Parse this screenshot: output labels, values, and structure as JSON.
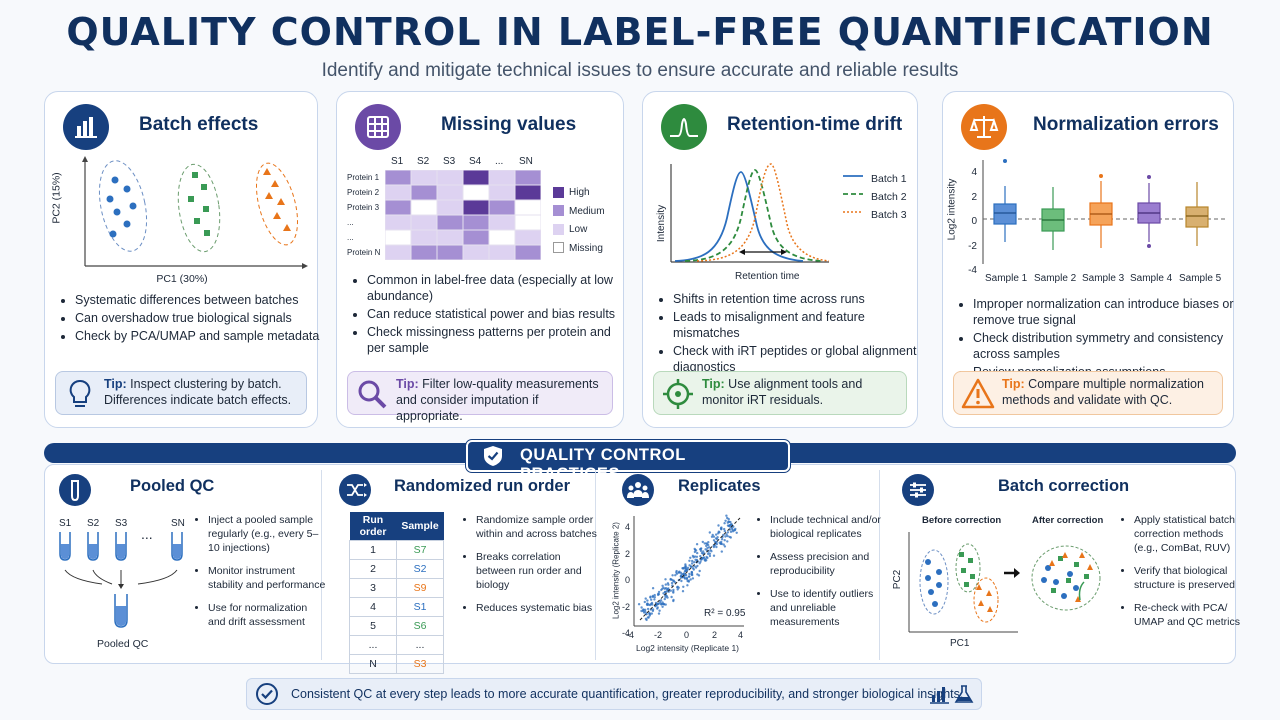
{
  "header": {
    "title": "QUALITY CONTROL IN LABEL-FREE QUANTIFICATION",
    "subtitle": "Identify and mitigate technical issues to ensure accurate and reliable results"
  },
  "cards": {
    "batch": {
      "title": "Batch effects",
      "icon": "bar-chart-icon",
      "color": "#17407f",
      "plot": {
        "xlabel": "PC1 (30%)",
        "ylabel": "PC2 (15%)"
      },
      "bullets": [
        "Systematic differences between batches",
        "Can overshadow true biological signals",
        "Check by PCA/UMAP and sample metadata"
      ],
      "tip_label": "Tip:",
      "tip_text": "Inspect clustering by batch. Differences indicate batch effects."
    },
    "missing": {
      "title": "Missing values",
      "icon": "grid-icon",
      "color": "#6b4aa6",
      "columns": [
        "S1",
        "S2",
        "S3",
        "S4",
        "...",
        "SN"
      ],
      "rows": [
        "Protein 1",
        "Protein 2",
        "Protein 3",
        "...",
        "...",
        "Protein N"
      ],
      "legend": [
        "High",
        "Medium",
        "Low",
        "Missing"
      ],
      "bullets": [
        "Common in label-free data (especially at low abundance)",
        "Can reduce statistical power and bias results",
        "Check missingness patterns per protein and per sample"
      ],
      "tip_label": "Tip:",
      "tip_text": "Filter low-quality measurements and consider imputation if appropriate."
    },
    "rt": {
      "title": "Retention-time drift",
      "icon": "chromatogram-icon",
      "color": "#2e8b3e",
      "plot": {
        "xlabel": "Retention time",
        "ylabel": "Intensity"
      },
      "legend": [
        "Batch 1",
        "Batch 2",
        "Batch 3"
      ],
      "bullets": [
        "Shifts in retention time across runs",
        "Leads to misalignment and feature mismatches",
        "Check with iRT peptides or global alignment diagnostics"
      ],
      "tip_label": "Tip:",
      "tip_text": "Use alignment tools and monitor iRT residuals."
    },
    "norm": {
      "title": "Normalization errors",
      "icon": "balance-scale-icon",
      "color": "#e8751a",
      "plot": {
        "ylabel": "Log2 intensity",
        "yticks": [
          "4",
          "2",
          "0",
          "-2",
          "-4"
        ]
      },
      "samples": [
        "Sample 1",
        "Sample 2",
        "Sample 3",
        "Sample 4",
        "Sample 5"
      ],
      "bullets": [
        "Improper normalization can introduce biases or remove true signal",
        "Check distribution symmetry and consistency across samples",
        "Review normalization assumptions"
      ],
      "tip_label": "Tip:",
      "tip_text": "Compare multiple normalization methods and validate with QC."
    }
  },
  "practices": {
    "heading": "QUALITY CONTROL PRACTICES",
    "pooled": {
      "title": "Pooled QC",
      "tubes": [
        "S1",
        "S2",
        "S3",
        "...",
        "SN"
      ],
      "pooled_label": "Pooled QC",
      "bullets": [
        "Inject a pooled sample regularly (e.g., every 5–10 injections)",
        "Monitor instrument stability and performance",
        "Use for normalization and drift assessment"
      ]
    },
    "random": {
      "title": "Randomized run order",
      "headers": [
        "Run order",
        "Sample"
      ],
      "rows": [
        [
          "1",
          "S7"
        ],
        [
          "2",
          "S2"
        ],
        [
          "3",
          "S9"
        ],
        [
          "4",
          "S1"
        ],
        [
          "5",
          "S6"
        ],
        [
          "...",
          "..."
        ],
        [
          "N",
          "S3"
        ]
      ],
      "bullets": [
        "Randomize sample order within and across batches",
        "Breaks correlation between run order and biology",
        "Reduces systematic bias"
      ]
    },
    "replicates": {
      "title": "Replicates",
      "xlabel": "Log2 intensity (Replicate 1)",
      "ylabel": "Log2 intensity (Replicate 2)",
      "r2": "R² = 0.95",
      "xticks": [
        "-4",
        "-2",
        "0",
        "2",
        "4"
      ],
      "yticks": [
        "4",
        "2",
        "0",
        "-2",
        "-4"
      ],
      "bullets": [
        "Include technical and/or biological replicates",
        "Assess precision and reproducibility",
        "Use to identify outliers and unreliable measurements"
      ]
    },
    "batchcorr": {
      "title": "Batch correction",
      "before": "Before correction",
      "after": "After correction",
      "xlabel": "PC1",
      "ylabel": "PC2",
      "bullets": [
        "Apply statistical batch correction methods (e.g., ComBat, RUV)",
        "Verify that biological structure is preserved",
        "Re-check with PCA/ UMAP and QC metrics"
      ]
    }
  },
  "footer": {
    "text": "Consistent QC at every step leads to more accurate quantification, greater reproducibility, and stronger biological insights."
  }
}
